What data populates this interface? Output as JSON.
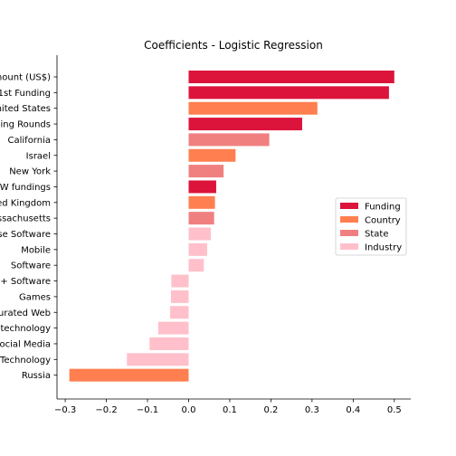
{
  "chart_data": {
    "type": "bar",
    "orientation": "horizontal",
    "title": "Coefficients - Logistic Regression",
    "xlabel": "",
    "ylabel": "",
    "xlim": [
      -0.32,
      0.54
    ],
    "grid": false,
    "legend": {
      "placement": "center-right",
      "entries": [
        {
          "name": "Funding",
          "color": "#dc143c"
        },
        {
          "name": "Country",
          "color": "#ff7f50"
        },
        {
          "name": "State",
          "color": "#f08080"
        },
        {
          "name": "Industry",
          "color": "#ffc0cb"
        }
      ]
    },
    "x_ticks": [
      "−0.3",
      "−0.2",
      "−0.1",
      "0.0",
      "0.1",
      "0.2",
      "0.3",
      "0.4",
      "0.5"
    ],
    "x_tick_values": [
      -0.3,
      -0.2,
      -0.1,
      0.0,
      0.1,
      0.2,
      0.3,
      0.4,
      0.5
    ],
    "categories": [
      "mount (US$)",
      "1st Funding",
      "nited States",
      "ing Rounds",
      "California",
      "Israel",
      "New York",
      "W fundings",
      "ed Kingdom",
      "ssachusetts",
      "se Software",
      "Mobile",
      "Software",
      "+ Software",
      "Games",
      "urated Web",
      "technology",
      "ocial Media",
      "Technology",
      "Russia"
    ],
    "values": [
      0.5,
      0.487,
      0.313,
      0.276,
      0.196,
      0.114,
      0.085,
      0.067,
      0.064,
      0.062,
      0.054,
      0.045,
      0.037,
      -0.042,
      -0.043,
      -0.045,
      -0.074,
      -0.095,
      -0.15,
      -0.29
    ],
    "groups": [
      "Funding",
      "Funding",
      "Country",
      "Funding",
      "State",
      "Country",
      "State",
      "Funding",
      "Country",
      "State",
      "Industry",
      "Industry",
      "Industry",
      "Industry",
      "Industry",
      "Industry",
      "Industry",
      "Industry",
      "Industry",
      "Country"
    ]
  }
}
